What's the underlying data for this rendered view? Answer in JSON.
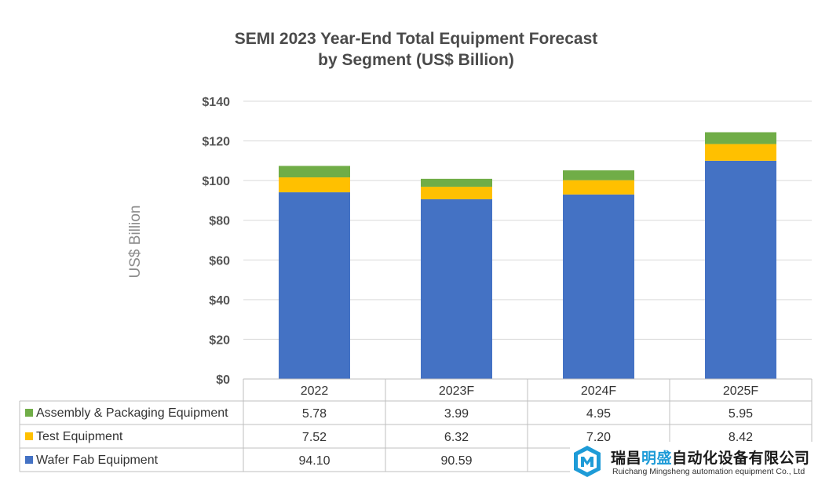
{
  "chart_data": {
    "type": "bar",
    "stacked": true,
    "title": [
      "SEMI 2023 Year-End Total Equipment Forecast",
      "by Segment (US$ Billion)"
    ],
    "ylabel": "US$ Billion",
    "ylim": [
      0,
      140
    ],
    "yticks": [
      0,
      20,
      40,
      60,
      80,
      100,
      120,
      140
    ],
    "ytick_labels": [
      "$0",
      "$20",
      "$40",
      "$60",
      "$80",
      "$100",
      "$120",
      "$140"
    ],
    "categories": [
      "2022",
      "2023F",
      "2024F",
      "2025F"
    ],
    "grid": true,
    "series": [
      {
        "name": "Wafer Fab Equipment",
        "color": "#4472c4",
        "values": [
          94.1,
          90.59,
          93.0,
          110.0
        ],
        "labels": [
          "94.10",
          "90.59",
          "",
          ""
        ]
      },
      {
        "name": "Test Equipment",
        "color": "#ffc000",
        "values": [
          7.52,
          6.32,
          7.2,
          8.42
        ],
        "labels": [
          "7.52",
          "6.32",
          "7.20",
          "8.42"
        ]
      },
      {
        "name": "Assembly & Packaging Equipment",
        "color": "#70ad47",
        "values": [
          5.78,
          3.99,
          4.95,
          5.95
        ],
        "labels": [
          "5.78",
          "3.99",
          "4.95",
          "5.95"
        ]
      }
    ],
    "table_row_order": [
      "Assembly & Packaging Equipment",
      "Test Equipment",
      "Wafer Fab Equipment"
    ]
  },
  "watermark": {
    "company_cn_a": "瑞昌",
    "company_cn_b": "明盛",
    "company_cn_c": "自动化设备有限公司",
    "company_en": "Ruichang Mingsheng automation equipment Co., Ltd"
  }
}
